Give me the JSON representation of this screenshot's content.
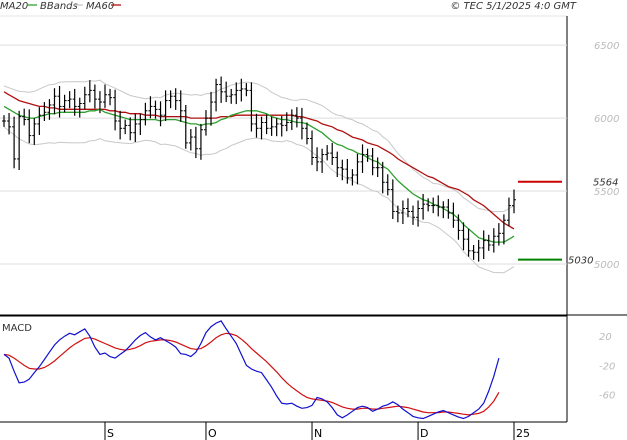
{
  "header": {
    "legend": [
      {
        "label": "MA20",
        "color": "#2ca02c"
      },
      {
        "label": "BBands",
        "color": "#c8c8c8"
      },
      {
        "label": "MA60",
        "color": "#b01010"
      }
    ],
    "copyright": "© TEC 5/1/2025 4:0 GMT"
  },
  "chart_data": [
    {
      "type": "line",
      "title": "Price (OHLC bars) with MA20, MA60 and Bollinger Bands",
      "ylim": [
        4650,
        6700
      ],
      "y_ticks": [
        "6500",
        "6000",
        "5500",
        "5000"
      ],
      "x_ticks": [
        "S",
        "O",
        "N",
        "D",
        "25"
      ],
      "x_tick_index": [
        20,
        40,
        61,
        82,
        101
      ],
      "levels": [
        {
          "label": "5564",
          "value": 5564,
          "color": "#cc0000"
        },
        {
          "label": "5030",
          "value": 5030,
          "color": "#008000"
        }
      ],
      "price_close": [
        5980,
        5940,
        5720,
        6010,
        5990,
        5880,
        5960,
        6020,
        6040,
        6090,
        6150,
        6080,
        6120,
        6130,
        6080,
        6100,
        6160,
        6190,
        6130,
        6110,
        6160,
        6140,
        5980,
        5930,
        5950,
        5900,
        5960,
        5990,
        6050,
        6080,
        6060,
        6020,
        6120,
        6150,
        6120,
        6050,
        5830,
        5870,
        5790,
        5920,
        6000,
        6110,
        6230,
        6180,
        6150,
        6160,
        6190,
        6200,
        6190,
        5960,
        5930,
        5970,
        5930,
        5940,
        5960,
        5950,
        5970,
        6020,
        6000,
        5930,
        5860,
        5730,
        5700,
        5750,
        5760,
        5730,
        5660,
        5650,
        5590,
        5610,
        5700,
        5750,
        5740,
        5660,
        5660,
        5560,
        5510,
        5360,
        5350,
        5380,
        5360,
        5320,
        5380,
        5410,
        5400,
        5400,
        5390,
        5390,
        5350,
        5300,
        5230,
        5170,
        5090,
        5080,
        5110,
        5160,
        5130,
        5190,
        5210,
        5300,
        5400,
        5440
      ],
      "ma20": [
        6080,
        6060,
        6040,
        6020,
        6010,
        6000,
        6000,
        6010,
        6020,
        6030,
        6030,
        6040,
        6040,
        6040,
        6040,
        6040,
        6040,
        6050,
        6050,
        6060,
        6040,
        6030,
        6020,
        6010,
        6000,
        5990,
        5990,
        5990,
        5990,
        5990,
        5990,
        5980,
        5990,
        5990,
        5990,
        5980,
        5970,
        5960,
        5960,
        5950,
        5960,
        5960,
        5970,
        5990,
        6000,
        6020,
        6030,
        6040,
        6050,
        6050,
        6050,
        6040,
        6030,
        6010,
        6000,
        5990,
        5990,
        5980,
        5970,
        5970,
        5960,
        5940,
        5920,
        5900,
        5870,
        5840,
        5820,
        5810,
        5790,
        5780,
        5760,
        5750,
        5730,
        5710,
        5700,
        5670,
        5650,
        5610,
        5570,
        5540,
        5510,
        5480,
        5460,
        5440,
        5430,
        5410,
        5400,
        5380,
        5360,
        5340,
        5310,
        5270,
        5240,
        5210,
        5180,
        5170,
        5160,
        5150,
        5150,
        5150,
        5170,
        5190
      ],
      "ma60": [
        6180,
        6160,
        6140,
        6120,
        6110,
        6100,
        6090,
        6080,
        6080,
        6070,
        6070,
        6060,
        6060,
        6060,
        6060,
        6060,
        6060,
        6060,
        6060,
        6060,
        6060,
        6050,
        6050,
        6040,
        6040,
        6030,
        6030,
        6030,
        6020,
        6020,
        6020,
        6010,
        6010,
        6010,
        6010,
        6010,
        6010,
        6000,
        6000,
        6000,
        6000,
        6000,
        6000,
        6010,
        6010,
        6010,
        6020,
        6020,
        6020,
        6020,
        6020,
        6020,
        6020,
        6020,
        6020,
        6020,
        6020,
        6020,
        6010,
        6010,
        6000,
        5990,
        5980,
        5960,
        5950,
        5940,
        5920,
        5910,
        5890,
        5870,
        5860,
        5850,
        5830,
        5820,
        5810,
        5790,
        5770,
        5750,
        5720,
        5700,
        5680,
        5660,
        5640,
        5620,
        5600,
        5590,
        5570,
        5550,
        5530,
        5520,
        5510,
        5490,
        5470,
        5440,
        5420,
        5400,
        5370,
        5340,
        5310,
        5280,
        5260,
        5240
      ]
    },
    {
      "type": "line",
      "title": "MACD",
      "ylim": [
        -95,
        45
      ],
      "y_ticks": [
        "20",
        "-20",
        "-60"
      ],
      "x_ticks": [
        "S",
        "O",
        "N",
        "D",
        "25"
      ],
      "series": [
        {
          "name": "MACD",
          "color": "#1010d0",
          "values": [
            -5,
            -10,
            -28,
            -44,
            -43,
            -39,
            -30,
            -22,
            -12,
            -2,
            8,
            15,
            20,
            24,
            22,
            26,
            30,
            20,
            5,
            -5,
            -3,
            -8,
            -10,
            -5,
            0,
            7,
            15,
            21,
            25,
            19,
            15,
            18,
            14,
            10,
            5,
            -4,
            -5,
            -8,
            -2,
            10,
            25,
            33,
            38,
            41,
            30,
            20,
            10,
            -5,
            -20,
            -25,
            -28,
            -30,
            -40,
            -50,
            -62,
            -72,
            -73,
            -72,
            -76,
            -79,
            -78,
            -75,
            -64,
            -66,
            -70,
            -78,
            -88,
            -92,
            -88,
            -83,
            -78,
            -76,
            -78,
            -83,
            -80,
            -76,
            -74,
            -70,
            -74,
            -80,
            -85,
            -90,
            -92,
            -93,
            -90,
            -87,
            -84,
            -82,
            -85,
            -88,
            -91,
            -93,
            -90,
            -85,
            -80,
            -72,
            -55,
            -35,
            -10
          ]
        },
        {
          "name": "Signal",
          "color": "#d01010",
          "values": [
            -5,
            -6,
            -10,
            -15,
            -20,
            -24,
            -25,
            -25,
            -23,
            -19,
            -14,
            -8,
            -2,
            4,
            9,
            13,
            17,
            18,
            16,
            13,
            10,
            7,
            4,
            2,
            1,
            2,
            4,
            7,
            11,
            13,
            14,
            15,
            15,
            14,
            12,
            9,
            6,
            3,
            2,
            3,
            7,
            12,
            18,
            22,
            24,
            23,
            21,
            16,
            10,
            3,
            -3,
            -9,
            -15,
            -22,
            -29,
            -37,
            -44,
            -50,
            -55,
            -60,
            -64,
            -66,
            -67,
            -68,
            -69,
            -71,
            -74,
            -77,
            -79,
            -80,
            -80,
            -79,
            -79,
            -80,
            -80,
            -79,
            -78,
            -77,
            -76,
            -77,
            -78,
            -80,
            -82,
            -84,
            -85,
            -85,
            -85,
            -84,
            -84,
            -85,
            -86,
            -87,
            -88,
            -87,
            -86,
            -83,
            -77,
            -69,
            -57
          ]
        }
      ]
    }
  ],
  "macd_panel": {
    "label": "MACD"
  }
}
